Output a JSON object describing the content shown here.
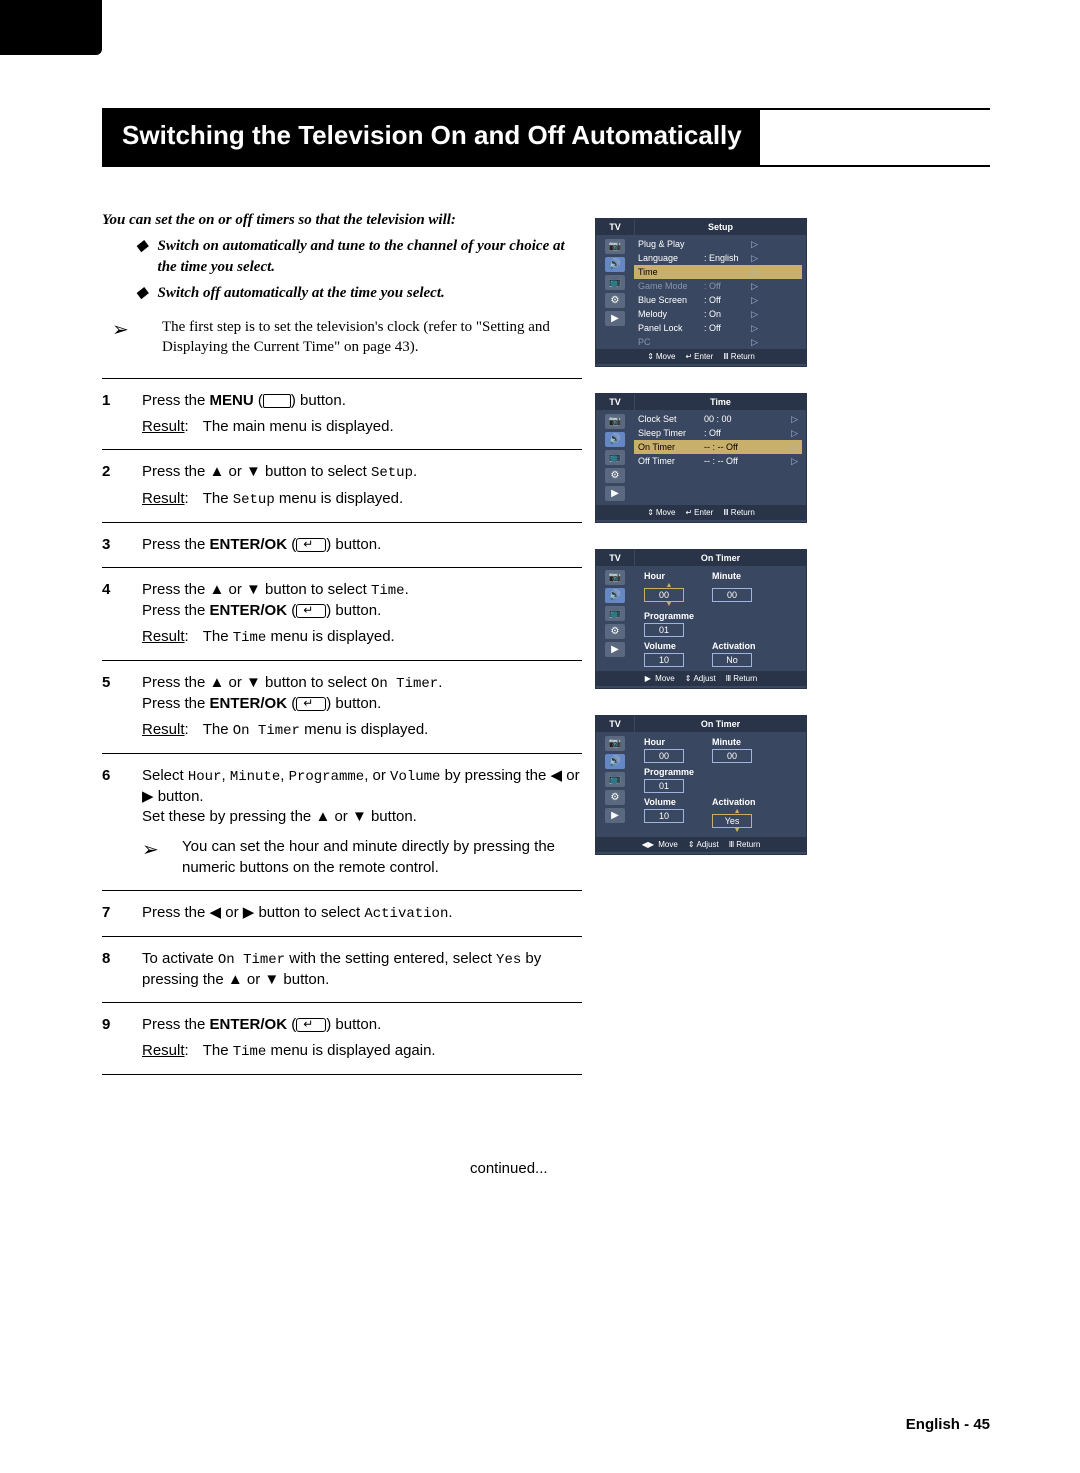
{
  "page_title": "Switching the Television On and Off Automatically",
  "intro": "You can set the on or off timers so that the television will:",
  "bullet1": "Switch on automatically and tune to the channel of your choice at the time you select.",
  "bullet2": "Switch off automatically at the time you select.",
  "top_note": "The first step is to set the television's clock (refer to \"Setting and Displaying the Current Time\" on page 43).",
  "step1_a": "Press the ",
  "step1_b": "MENU",
  "step1_c": " button.",
  "step1_res": "The main menu is displayed.",
  "step2_a": "Press the ▲ or ▼ button to select ",
  "step2_b": "Setup",
  "step2_res_a": "The ",
  "step2_res_b": "Setup",
  "step2_res_c": " menu is displayed.",
  "step3_a": "Press the ",
  "step3_b": "ENTER/OK",
  "step3_c": " button.",
  "step4_a": "Press the ▲ or ▼ button to select ",
  "step4_b": "Time",
  "step4_c": "Press the ",
  "step4_d": "ENTER/OK",
  "step4_e": " button.",
  "step4_res_a": "The ",
  "step4_res_b": "Time",
  "step4_res_c": " menu is displayed.",
  "step5_a": "Press the ▲ or ▼ button to select ",
  "step5_b": "On Timer",
  "step5_c": "Press the ",
  "step5_d": "ENTER/OK",
  "step5_e": " button.",
  "step5_res_a": "The ",
  "step5_res_b": "On Timer",
  "step5_res_c": " menu is displayed.",
  "step6_a": "Select ",
  "step6_b1": "Hour",
  "step6_b2": "Minute",
  "step6_b3": "Programme",
  "step6_b4": "Volume",
  "step6_c": " by pressing the ◀ or ▶ button.",
  "step6_d": "Set these by pressing the ▲ or ▼ button.",
  "step6_note": "You can set the hour and minute directly by pressing the numeric buttons on the remote control.",
  "step7_a": "Press the ◀ or ▶ button to select ",
  "step7_b": "Activation",
  "step8_a": "To activate ",
  "step8_b": "On Timer",
  "step8_c": " with the setting entered, select ",
  "step8_d": "Yes",
  "step8_e": " by pressing the ▲ or ▼ button.",
  "step9_a": "Press the ",
  "step9_b": "ENTER/OK",
  "step9_c": " button.",
  "step9_res_a": "The ",
  "step9_res_b": "Time",
  "step9_res_c": " menu is displayed again.",
  "result_label": "Result",
  "continued": "continued...",
  "footer_lang": "English",
  "footer_page": "45",
  "osd": {
    "tv": "TV",
    "setup": {
      "title": "Setup",
      "rows": [
        {
          "l": "Plug & Play",
          "v": "",
          "hl": false,
          "dim": false
        },
        {
          "l": "Language",
          "v": ": English",
          "hl": false,
          "dim": false
        },
        {
          "l": "Time",
          "v": "",
          "hl": true,
          "dim": false
        },
        {
          "l": "Game Mode",
          "v": ": Off",
          "hl": false,
          "dim": true
        },
        {
          "l": "Blue Screen",
          "v": ": Off",
          "hl": false,
          "dim": false
        },
        {
          "l": "Melody",
          "v": ": On",
          "hl": false,
          "dim": false
        },
        {
          "l": "Panel Lock",
          "v": ": Off",
          "hl": false,
          "dim": false
        },
        {
          "l": "PC",
          "v": "",
          "hl": false,
          "dim": true
        }
      ],
      "foot": {
        "move": "Move",
        "enter": "Enter",
        "return": "Return"
      }
    },
    "time": {
      "title": "Time",
      "rows": [
        {
          "l": "Clock Set",
          "v": "00 : 00",
          "hl": false
        },
        {
          "l": "Sleep Timer",
          "v": ": Off",
          "hl": false
        },
        {
          "l": "On Timer",
          "v": "-- : --   Off",
          "hl": true
        },
        {
          "l": "Off Timer",
          "v": "-- : --   Off",
          "hl": false
        }
      ],
      "foot": {
        "move": "Move",
        "enter": "Enter",
        "return": "Return"
      }
    },
    "ontimer1": {
      "title": "On Timer",
      "hour_lbl": "Hour",
      "hour_val": "00",
      "min_lbl": "Minute",
      "min_val": "00",
      "prog_lbl": "Programme",
      "prog_val": "01",
      "vol_lbl": "Volume",
      "vol_val": "10",
      "act_lbl": "Activation",
      "act_val": "No",
      "hour_active": true,
      "foot": {
        "move": "Move",
        "adjust": "Adjust",
        "return": "Return"
      },
      "foot_move_glyph": "▶"
    },
    "ontimer2": {
      "title": "On Timer",
      "hour_lbl": "Hour",
      "hour_val": "00",
      "min_lbl": "Minute",
      "min_val": "00",
      "prog_lbl": "Programme",
      "prog_val": "01",
      "vol_lbl": "Volume",
      "vol_val": "10",
      "act_lbl": "Activation",
      "act_val": "Yes",
      "act_active": true,
      "foot": {
        "move": "Move",
        "adjust": "Adjust",
        "return": "Return"
      },
      "foot_move_glyph": "◀▶"
    }
  }
}
